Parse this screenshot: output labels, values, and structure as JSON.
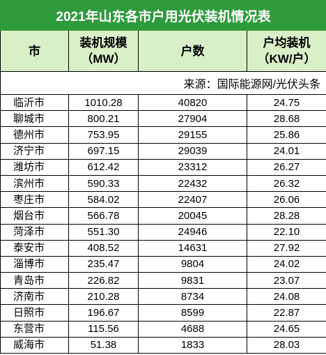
{
  "table": {
    "title": "2021年山东各市户用光伏装机情况表",
    "headers": [
      [
        "市"
      ],
      [
        "装机规模",
        "（MW）"
      ],
      [
        "户数"
      ],
      [
        "户均装机",
        "（KW/户）"
      ]
    ],
    "source": "来源：国际能源网/光伏头条",
    "rows": [
      [
        "临沂市",
        "1010.28",
        "40820",
        "24.75"
      ],
      [
        "聊城市",
        "800.21",
        "27904",
        "28.68"
      ],
      [
        "德州市",
        "753.95",
        "29155",
        "25.86"
      ],
      [
        "济宁市",
        "697.15",
        "29039",
        "24.01"
      ],
      [
        "潍坊市",
        "612.42",
        "23312",
        "26.27"
      ],
      [
        "滨州市",
        "590.33",
        "22432",
        "26.32"
      ],
      [
        "枣庄市",
        "584.02",
        "22407",
        "26.06"
      ],
      [
        "烟台市",
        "566.78",
        "20045",
        "28.28"
      ],
      [
        "菏泽市",
        "551.30",
        "24946",
        "22.10"
      ],
      [
        "泰安市",
        "408.52",
        "14631",
        "27.92"
      ],
      [
        "淄博市",
        "235.47",
        "9804",
        "24.02"
      ],
      [
        "青岛市",
        "226.82",
        "9831",
        "23.07"
      ],
      [
        "济南市",
        "210.28",
        "8734",
        "24.08"
      ],
      [
        "日照市",
        "196.67",
        "8599",
        "22.87"
      ],
      [
        "东营市",
        "115.56",
        "4688",
        "24.65"
      ],
      [
        "威海市",
        "51.38",
        "1833",
        "28.03"
      ]
    ]
  }
}
